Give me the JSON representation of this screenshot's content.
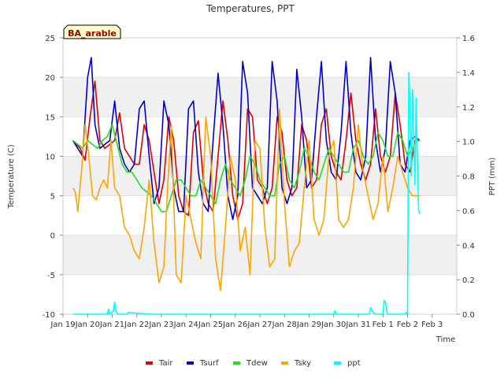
{
  "chart_data": {
    "type": "line",
    "title": "Temperatures, PPT",
    "xlabel": "Time",
    "ylabel": "Temperature (C)",
    "y2label": "PPT (mm)",
    "station_label": "BA_arable",
    "xlim": [
      0,
      16
    ],
    "ylim": [
      -10,
      25
    ],
    "y2lim": [
      0,
      1.6
    ],
    "x_ticks": [
      {
        "x": 0,
        "label": "Jan 19"
      },
      {
        "x": 1,
        "label": "Jan 20"
      },
      {
        "x": 2,
        "label": "Jan 21"
      },
      {
        "x": 3,
        "label": "Jan 22"
      },
      {
        "x": 4,
        "label": "Jan 23"
      },
      {
        "x": 5,
        "label": "Jan 24"
      },
      {
        "x": 6,
        "label": "Jan 25"
      },
      {
        "x": 7,
        "label": "Jan 26"
      },
      {
        "x": 8,
        "label": "Jan 27"
      },
      {
        "x": 9,
        "label": "Jan 28"
      },
      {
        "x": 10,
        "label": "Jan 29"
      },
      {
        "x": 11,
        "label": "Jan 30"
      },
      {
        "x": 12,
        "label": "Jan 31"
      },
      {
        "x": 13,
        "label": "Feb 1"
      },
      {
        "x": 14,
        "label": "Feb 2"
      },
      {
        "x": 15,
        "label": "Feb 3"
      }
    ],
    "y_ticks": [
      -10,
      -5,
      0,
      5,
      10,
      15,
      20,
      25
    ],
    "y2_ticks": [
      "0.0",
      "0.2",
      "0.4",
      "0.6",
      "0.8",
      "1.0",
      "1.2",
      "1.4",
      "1.6"
    ],
    "grid": "horizontal bands",
    "legend_position": "bottom",
    "series": [
      {
        "name": "Tair",
        "color": "#dd0000",
        "axis": "left",
        "x": [
          0.4,
          0.7,
          0.9,
          1.1,
          1.3,
          1.5,
          1.7,
          1.9,
          2.1,
          2.3,
          2.5,
          2.7,
          2.9,
          3.1,
          3.3,
          3.5,
          3.7,
          3.9,
          4.1,
          4.3,
          4.5,
          4.7,
          4.9,
          5.1,
          5.3,
          5.5,
          5.7,
          5.9,
          6.1,
          6.3,
          6.5,
          6.7,
          6.9,
          7.1,
          7.3,
          7.5,
          7.7,
          7.9,
          8.1,
          8.3,
          8.5,
          8.7,
          8.9,
          9.1,
          9.3,
          9.5,
          9.7,
          9.9,
          10.1,
          10.3,
          10.5,
          10.7,
          10.9,
          11.1,
          11.3,
          11.5,
          11.7,
          11.9,
          12.1,
          12.3,
          12.5,
          12.7,
          12.9,
          13.1,
          13.3,
          13.5,
          13.7,
          13.9,
          14.1,
          14.3,
          14.5
        ],
        "y": [
          12,
          11,
          9.5,
          15,
          19.5,
          12,
          11,
          11.5,
          12,
          15.5,
          11,
          10,
          9,
          9,
          14,
          12,
          8,
          4,
          7,
          15,
          12,
          5,
          3,
          2.5,
          13,
          14.5,
          7,
          4,
          3,
          10,
          17,
          12,
          5,
          2,
          4,
          16,
          15,
          7,
          6,
          4,
          6,
          15,
          13,
          7,
          5,
          6,
          14,
          12,
          6,
          7,
          14,
          16,
          10,
          8,
          7,
          12,
          18,
          12,
          9,
          7,
          9,
          16,
          10,
          8,
          10,
          18,
          14,
          9,
          8,
          12,
          12
        ]
      },
      {
        "name": "Tsurf",
        "color": "#0000cc",
        "axis": "left",
        "x": [
          0.4,
          0.6,
          0.8,
          1.0,
          1.15,
          1.3,
          1.5,
          1.7,
          1.9,
          2.1,
          2.3,
          2.5,
          2.7,
          2.9,
          3.1,
          3.3,
          3.5,
          3.7,
          3.9,
          4.1,
          4.3,
          4.5,
          4.7,
          4.9,
          5.1,
          5.3,
          5.5,
          5.7,
          5.9,
          6.1,
          6.3,
          6.5,
          6.7,
          6.9,
          7.1,
          7.3,
          7.5,
          7.7,
          7.9,
          8.1,
          8.3,
          8.5,
          8.7,
          8.9,
          9.1,
          9.3,
          9.5,
          9.7,
          9.9,
          10.1,
          10.3,
          10.5,
          10.7,
          10.9,
          11.1,
          11.3,
          11.5,
          11.7,
          11.9,
          12.1,
          12.3,
          12.5,
          12.7,
          12.9,
          13.1,
          13.3,
          13.5,
          13.7,
          13.9,
          14.1,
          14.3,
          14.5
        ],
        "y": [
          12,
          11,
          10,
          20,
          22.5,
          14,
          11,
          11.5,
          12,
          17,
          11,
          9,
          8,
          9,
          16,
          17,
          10,
          4,
          6,
          17,
          14,
          6,
          3,
          3,
          16,
          17,
          8,
          4,
          3,
          12,
          20.5,
          14,
          5,
          2,
          5,
          22,
          18,
          6,
          5,
          4,
          6,
          22,
          17,
          6,
          4,
          6,
          21,
          15,
          6,
          7,
          15,
          22,
          12,
          8,
          7,
          13,
          22,
          13,
          8,
          7,
          10,
          22.5,
          12,
          8,
          11,
          22,
          18,
          9,
          8,
          12,
          12.5,
          12
        ]
      },
      {
        "name": "Tdew",
        "color": "#22dd22",
        "axis": "left",
        "x": [
          0.4,
          0.6,
          0.8,
          1.0,
          1.2,
          1.4,
          1.6,
          1.8,
          2.0,
          2.2,
          2.4,
          2.6,
          2.8,
          3.0,
          3.2,
          3.4,
          3.6,
          3.8,
          4.0,
          4.2,
          4.4,
          4.6,
          4.8,
          5.0,
          5.2,
          5.4,
          5.6,
          5.8,
          6.0,
          6.2,
          6.4,
          6.6,
          6.8,
          7.0,
          7.2,
          7.4,
          7.6,
          7.8,
          8.0,
          8.2,
          8.4,
          8.6,
          8.8,
          9.0,
          9.2,
          9.4,
          9.6,
          9.8,
          10.0,
          10.2,
          10.4,
          10.6,
          10.8,
          11.0,
          11.2,
          11.4,
          11.6,
          11.8,
          12.0,
          12.2,
          12.4,
          12.6,
          12.8,
          13.0,
          13.2,
          13.4,
          13.6,
          13.8,
          14.0,
          14.2,
          14.4,
          14.5
        ],
        "y": [
          12,
          11.5,
          11,
          12,
          11.5,
          11,
          12,
          12.5,
          14,
          11.5,
          9,
          8,
          8,
          7,
          6,
          5.5,
          5,
          4,
          3,
          3,
          5,
          7,
          7,
          6,
          5,
          5,
          7,
          6,
          5,
          4,
          7,
          9,
          7,
          6,
          5,
          7,
          10,
          9,
          7,
          6,
          5,
          5,
          9,
          10,
          7,
          6,
          8,
          11,
          10,
          8,
          7,
          9,
          11,
          10,
          9,
          8,
          8,
          11,
          12,
          10,
          9,
          10,
          13,
          12,
          10,
          10,
          13,
          12,
          10,
          11,
          12,
          12
        ]
      },
      {
        "name": "Tsky",
        "color": "#ffa500",
        "axis": "left",
        "x": [
          0.4,
          0.5,
          0.6,
          0.75,
          0.9,
          1.05,
          1.2,
          1.35,
          1.5,
          1.65,
          1.8,
          1.95,
          2.1,
          2.3,
          2.5,
          2.7,
          2.9,
          3.1,
          3.3,
          3.5,
          3.7,
          3.9,
          4.1,
          4.25,
          4.4,
          4.6,
          4.8,
          5.0,
          5.2,
          5.4,
          5.6,
          5.8,
          6.0,
          6.2,
          6.4,
          6.6,
          6.8,
          7.0,
          7.2,
          7.4,
          7.6,
          7.8,
          8.0,
          8.2,
          8.4,
          8.6,
          8.8,
          9.0,
          9.2,
          9.4,
          9.6,
          9.8,
          10.0,
          10.2,
          10.4,
          10.6,
          10.8,
          11.0,
          11.2,
          11.4,
          11.6,
          11.8,
          12.0,
          12.2,
          12.4,
          12.6,
          12.8,
          13.0,
          13.2,
          13.4,
          13.6,
          13.8,
          14.0,
          14.2,
          14.4,
          14.5
        ],
        "y": [
          6,
          5.5,
          3,
          8,
          14,
          10,
          5,
          4.5,
          6,
          7,
          6,
          12,
          6,
          5,
          1,
          0,
          -2,
          -3,
          1,
          7,
          -1,
          -6,
          -4,
          6,
          14,
          -5,
          -6,
          5,
          2,
          -1,
          -3,
          15,
          10,
          -3,
          -7,
          1,
          10,
          7,
          -2,
          1,
          -5,
          12,
          11,
          1,
          -4,
          -3,
          16,
          4,
          -4,
          -2,
          -1,
          6,
          12,
          2,
          0,
          2,
          10,
          12,
          2,
          1,
          2,
          6,
          14,
          8,
          5,
          2,
          4,
          10,
          3,
          6,
          10,
          8,
          6,
          5,
          5,
          5
        ]
      },
      {
        "name": "ppt",
        "color": "#00ffff",
        "axis": "right",
        "x": [
          0.4,
          1.8,
          1.85,
          1.9,
          2.05,
          2.1,
          2.15,
          2.2,
          2.6,
          2.65,
          3.6,
          4.0,
          11.0,
          11.05,
          11.1,
          12.45,
          12.5,
          12.55,
          12.6,
          12.7,
          13.0,
          13.05,
          13.1,
          13.15,
          13.2,
          13.9,
          13.95,
          14.0,
          14.05,
          14.1,
          14.15,
          14.2,
          14.25,
          14.3,
          14.35,
          14.4,
          14.45,
          14.5
        ],
        "y": [
          0,
          0,
          0.03,
          0,
          0.02,
          0.07,
          0.02,
          0,
          0,
          0.01,
          0,
          0,
          0,
          0.02,
          0,
          0,
          0.04,
          0.02,
          0.01,
          0,
          0,
          0.08,
          0.07,
          0.02,
          0,
          0,
          0.01,
          0,
          1.4,
          1.2,
          0.8,
          1.3,
          1.05,
          0.75,
          1.25,
          0.9,
          0.6,
          0.58
        ]
      }
    ]
  }
}
